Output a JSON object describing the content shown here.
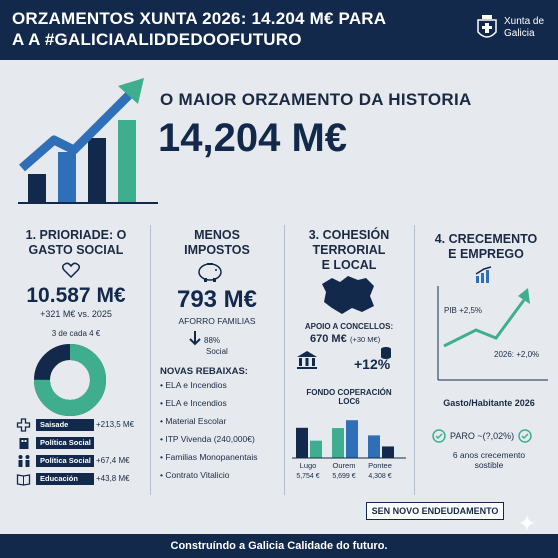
{
  "header": {
    "title_line1": "ORZAMENTOS XUNTA 2026: 14.204 M€ PARA",
    "title_line2": "A     A #GALICIAALIDDEDOOFUTURO",
    "logo_text_1": "Xunta de",
    "logo_text_2": "Galicia"
  },
  "hero": {
    "kicker": "O MAIOR ORZAMENTO DA HISTORIA",
    "value": "14,204 M€"
  },
  "col1": {
    "title_1": "1. PRIORIADE: O",
    "title_2": "GASTO SOCIAL",
    "value": "10.587 M€",
    "delta": "+321 M€ vs. 2025",
    "share_label": "3 de cada 4 €",
    "share_fraction": 0.75,
    "items": [
      {
        "icon": "health-cross-icon",
        "label": "Saisade",
        "value": "+213,5 M€"
      },
      {
        "icon": "building-icon",
        "label": "Política Social",
        "value": ""
      },
      {
        "icon": "family-icon",
        "label": "Política Social",
        "value": "+67,4 M€"
      },
      {
        "icon": "book-icon",
        "label": "Educación",
        "value": "+43,8 M€"
      }
    ]
  },
  "col2": {
    "title_1": "MENOS",
    "title_2": "IMPOSTOS",
    "value": "793 M€",
    "sub": "AFORRO FAMILIAS",
    "pct": "88%",
    "pct_label": "Social",
    "rebaixas_title": "NOVAS REBAIXAS:",
    "rebaixas": [
      "ELA e Incendios",
      "ELA e Incendios",
      "Material Escolar",
      "ITP Vivenda (240,000€)",
      "Familias Monopanentais",
      "Contrato Vitalicio"
    ]
  },
  "col3": {
    "title_1": "3. COHESIÓN",
    "title_2": "TERRORIAL",
    "title_3": "E LOCAL",
    "apoio_label": "APOIO A CONCELLOS:",
    "apoio_value": "670 M€",
    "apoio_delta": "(+30 M€)",
    "pct": "+12%",
    "fondo_title_1": "FONDO COPERACIÓN",
    "fondo_title_2": "LOC6"
  },
  "chart_data": {
    "type": "bar",
    "categories": [
      "Lugo",
      "Ourem",
      "Pontee"
    ],
    "category_values": [
      "5,754 €",
      "5,699 €",
      "4,308 €"
    ],
    "series": [
      {
        "values": [
          5.754,
          5.699,
          4.308
        ]
      },
      {
        "values": [
          3.3,
          7.2,
          2.2
        ]
      }
    ],
    "colors": [
      "#13294b",
      "#3fae8f",
      "#2e6fb8"
    ]
  },
  "col4": {
    "title_1": "4. CRECEMENTO",
    "title_2": "E EMPREGO",
    "pib": "PIB +2,5%",
    "y2026": "2026: +2,0%",
    "gasto": "Gasto/Habitante 2026",
    "paro": "PARO ~(?,02%)",
    "anos_1": "6 anos crecemento",
    "anos_2": "sostible",
    "sen": "SEN NOVO ENDEUDAMENTO"
  },
  "footer": {
    "text": "Construíndo a Galicia Calidade do futuro."
  }
}
